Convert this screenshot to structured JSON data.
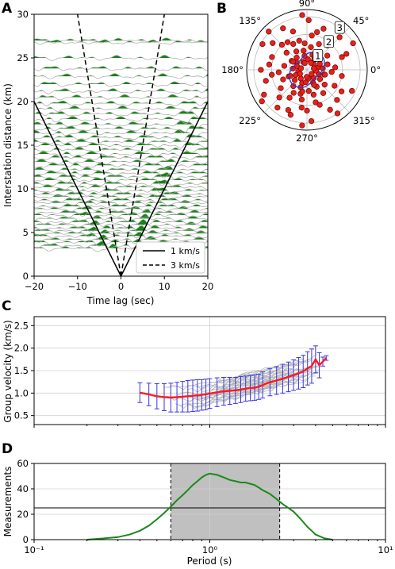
{
  "panels": {
    "A": {
      "letter": "A"
    },
    "B": {
      "letter": "B"
    },
    "C": {
      "letter": "C"
    },
    "D": {
      "letter": "D"
    }
  },
  "chart_data": [
    {
      "id": "A",
      "type": "line",
      "xlabel": "Time lag (sec)",
      "ylabel": "Interstation distance (km)",
      "xlim": [
        -20,
        20
      ],
      "ylim": [
        0,
        30
      ],
      "xticks": [
        "−20",
        "−10",
        "0",
        "10",
        "20"
      ],
      "yticks": [
        "0",
        "5",
        "10",
        "15",
        "20",
        "25",
        "30"
      ],
      "legend": {
        "placement": "bottom-right",
        "entries": [
          "1 km/s",
          "3 km/s"
        ]
      },
      "reference_lines": [
        {
          "name": "1 km/s",
          "style": "solid",
          "velocity_km_s": 1
        },
        {
          "name": "3 km/s",
          "style": "dashed",
          "velocity_km_s": 3
        }
      ],
      "trace_distances_km": [
        3.2,
        3.5,
        3.9,
        4.2,
        4.6,
        4.9,
        5.2,
        5.5,
        5.9,
        6.2,
        6.6,
        7.0,
        7.3,
        7.7,
        8.0,
        8.4,
        8.7,
        9.1,
        9.4,
        9.8,
        10.2,
        10.6,
        11.0,
        11.4,
        11.8,
        12.2,
        12.7,
        13.1,
        13.6,
        14.0,
        14.5,
        15.0,
        15.4,
        15.9,
        16.4,
        16.9,
        17.4,
        18.0,
        18.6,
        19.2,
        19.8,
        20.5,
        21.2,
        22.0,
        22.9,
        23.8,
        25.0,
        26.8,
        27.0
      ],
      "colors": {
        "fill": "#0b7a0b",
        "trace": "#a9a9a9"
      }
    },
    {
      "id": "B",
      "type": "scatter",
      "projection": "polar",
      "angle_labels": [
        "0°",
        "45°",
        "90°",
        "135°",
        "180°",
        "225°",
        "270°",
        "315°"
      ],
      "radial_labels": [
        "1",
        "2",
        "3"
      ],
      "rlim": [
        0,
        3.4
      ],
      "points": [
        [
          10,
          0.6
        ],
        [
          25,
          0.8
        ],
        [
          40,
          0.5
        ],
        [
          55,
          0.7
        ],
        [
          70,
          0.9
        ],
        [
          85,
          0.6
        ],
        [
          100,
          0.8
        ],
        [
          115,
          0.5
        ],
        [
          130,
          0.9
        ],
        [
          145,
          0.7
        ],
        [
          160,
          0.6
        ],
        [
          175,
          0.8
        ],
        [
          190,
          0.5
        ],
        [
          205,
          0.7
        ],
        [
          220,
          0.9
        ],
        [
          235,
          0.6
        ],
        [
          250,
          0.8
        ],
        [
          265,
          0.7
        ],
        [
          280,
          0.5
        ],
        [
          295,
          0.8
        ],
        [
          310,
          0.6
        ],
        [
          325,
          0.9
        ],
        [
          340,
          0.7
        ],
        [
          355,
          0.5
        ],
        [
          15,
          1.2
        ],
        [
          35,
          1.4
        ],
        [
          60,
          1.1
        ],
        [
          80,
          1.3
        ],
        [
          95,
          1.5
        ],
        [
          120,
          1.2
        ],
        [
          150,
          1.0
        ],
        [
          170,
          1.3
        ],
        [
          200,
          1.1
        ],
        [
          230,
          1.2
        ],
        [
          255,
          1.4
        ],
        [
          275,
          1.2
        ],
        [
          300,
          1.1
        ],
        [
          320,
          1.3
        ],
        [
          345,
          1.0
        ],
        [
          5,
          1.6
        ],
        [
          50,
          1.8
        ],
        [
          65,
          1.6
        ],
        [
          105,
          1.7
        ],
        [
          125,
          1.9
        ],
        [
          140,
          1.5
        ],
        [
          185,
          1.6
        ],
        [
          215,
          1.8
        ],
        [
          240,
          1.5
        ],
        [
          260,
          1.7
        ],
        [
          285,
          1.9
        ],
        [
          305,
          1.6
        ],
        [
          330,
          1.8
        ],
        [
          20,
          2.1
        ],
        [
          75,
          2.2
        ],
        [
          110,
          2.3
        ],
        [
          135,
          2.0
        ],
        [
          160,
          2.1
        ],
        [
          195,
          2.4
        ],
        [
          225,
          2.2
        ],
        [
          245,
          2.5
        ],
        [
          270,
          2.3
        ],
        [
          290,
          2.1
        ],
        [
          315,
          2.4
        ],
        [
          350,
          2.0
        ],
        [
          45,
          2.6
        ],
        [
          88,
          2.8
        ],
        [
          120,
          2.7
        ],
        [
          150,
          2.9
        ],
        [
          180,
          2.6
        ],
        [
          210,
          2.8
        ],
        [
          250,
          2.7
        ],
        [
          275,
          2.9
        ],
        [
          300,
          2.6
        ],
        [
          335,
          2.8
        ],
        [
          30,
          3.0
        ],
        [
          95,
          3.1
        ],
        [
          135,
          3.05
        ],
        [
          215,
          3.1
        ],
        [
          265,
          3.15
        ],
        [
          305,
          3.0
        ],
        [
          5,
          0.9
        ],
        [
          50,
          1.0
        ],
        [
          100,
          1.1
        ],
        [
          150,
          0.9
        ],
        [
          200,
          1.0
        ],
        [
          250,
          1.05
        ],
        [
          295,
          0.95
        ],
        [
          345,
          1.05
        ],
        [
          12,
          0.4
        ],
        [
          60,
          0.45
        ],
        [
          108,
          0.4
        ],
        [
          165,
          0.35
        ],
        [
          210,
          0.45
        ],
        [
          268,
          0.4
        ],
        [
          318,
          0.35
        ],
        [
          355,
          1.4
        ],
        [
          22,
          2.4
        ],
        [
          68,
          2.5
        ],
        [
          142,
          2.45
        ],
        [
          188,
          2.0
        ],
        [
          232,
          2.7
        ],
        [
          262,
          2.15
        ],
        [
          285,
          1.45
        ],
        [
          328,
          2.3
        ],
        [
          82,
          1.95
        ],
        [
          118,
          1.65
        ],
        [
          172,
          2.15
        ],
        [
          202,
          1.45
        ],
        [
          238,
          1.85
        ],
        [
          258,
          1.25
        ]
      ],
      "colors": {
        "point": "#e8201a",
        "edge": "#6b0a08",
        "curve": "#3333cc"
      }
    },
    {
      "id": "C",
      "type": "line",
      "ylabel": "Group velocity (km/s)",
      "xscale": "log",
      "xlim": [
        0.1,
        10
      ],
      "ylim": [
        0.3,
        2.7
      ],
      "yticks": [
        "0.5",
        "1.0",
        "1.5",
        "2.0",
        "2.5"
      ],
      "series": [
        {
          "x": [
            0.4,
            0.45,
            0.5,
            0.55,
            0.6,
            0.65,
            0.7,
            0.75,
            0.8,
            0.85,
            0.9,
            0.95,
            1.0,
            1.1,
            1.2,
            1.3,
            1.4,
            1.5,
            1.6,
            1.7,
            1.8,
            1.9,
            2.0,
            2.2,
            2.4,
            2.6,
            2.8,
            3.0,
            3.2,
            3.4,
            3.6,
            3.8,
            4.0,
            4.2,
            4.4,
            4.6
          ],
          "values": [
            1.01,
            0.97,
            0.93,
            0.91,
            0.9,
            0.91,
            0.92,
            0.93,
            0.94,
            0.95,
            0.96,
            0.97,
            0.99,
            1.02,
            1.04,
            1.05,
            1.06,
            1.08,
            1.1,
            1.11,
            1.12,
            1.14,
            1.18,
            1.24,
            1.28,
            1.32,
            1.36,
            1.4,
            1.44,
            1.48,
            1.55,
            1.6,
            1.75,
            1.62,
            1.7,
            1.78
          ],
          "error": [
            0.22,
            0.25,
            0.28,
            0.3,
            0.32,
            0.33,
            0.34,
            0.35,
            0.35,
            0.35,
            0.34,
            0.34,
            0.33,
            0.32,
            0.31,
            0.3,
            0.29,
            0.29,
            0.28,
            0.28,
            0.28,
            0.28,
            0.29,
            0.3,
            0.31,
            0.32,
            0.33,
            0.34,
            0.35,
            0.36,
            0.37,
            0.38,
            0.3,
            0.28,
            0.1,
            0.05
          ]
        }
      ],
      "colors": {
        "mean": "#ff1a1a",
        "error": "#3333ee",
        "individual": "#b5b5b5"
      }
    },
    {
      "id": "D",
      "type": "line",
      "xlabel": "Period (s)",
      "ylabel": "Measurements",
      "xscale": "log",
      "xlim": [
        0.1,
        10
      ],
      "ylim": [
        0,
        60
      ],
      "xticks": [
        "10⁻¹",
        "10⁰",
        "10¹"
      ],
      "yticks": [
        "0",
        "20",
        "40",
        "60"
      ],
      "shaded_range": [
        0.6,
        2.5
      ],
      "threshold": 25,
      "series": [
        {
          "x": [
            0.2,
            0.25,
            0.3,
            0.35,
            0.4,
            0.45,
            0.5,
            0.55,
            0.6,
            0.65,
            0.7,
            0.75,
            0.8,
            0.85,
            0.9,
            0.95,
            1.0,
            1.1,
            1.2,
            1.3,
            1.4,
            1.5,
            1.6,
            1.7,
            1.8,
            1.9,
            2.0,
            2.2,
            2.4,
            2.6,
            2.8,
            3.0,
            3.2,
            3.4,
            3.6,
            3.8,
            4.0,
            4.5,
            5.0
          ],
          "values": [
            0,
            1,
            2,
            4,
            7,
            11,
            16,
            21,
            26,
            31,
            35,
            39,
            43,
            46,
            49,
            51,
            52,
            51,
            49,
            47,
            46,
            45,
            45,
            44,
            43,
            41,
            39,
            36,
            32,
            28,
            25,
            22,
            18,
            14,
            10,
            7,
            4,
            1,
            0
          ]
        }
      ],
      "colors": {
        "line": "#1a8a1a",
        "shade": "#c0c0c0"
      }
    }
  ]
}
